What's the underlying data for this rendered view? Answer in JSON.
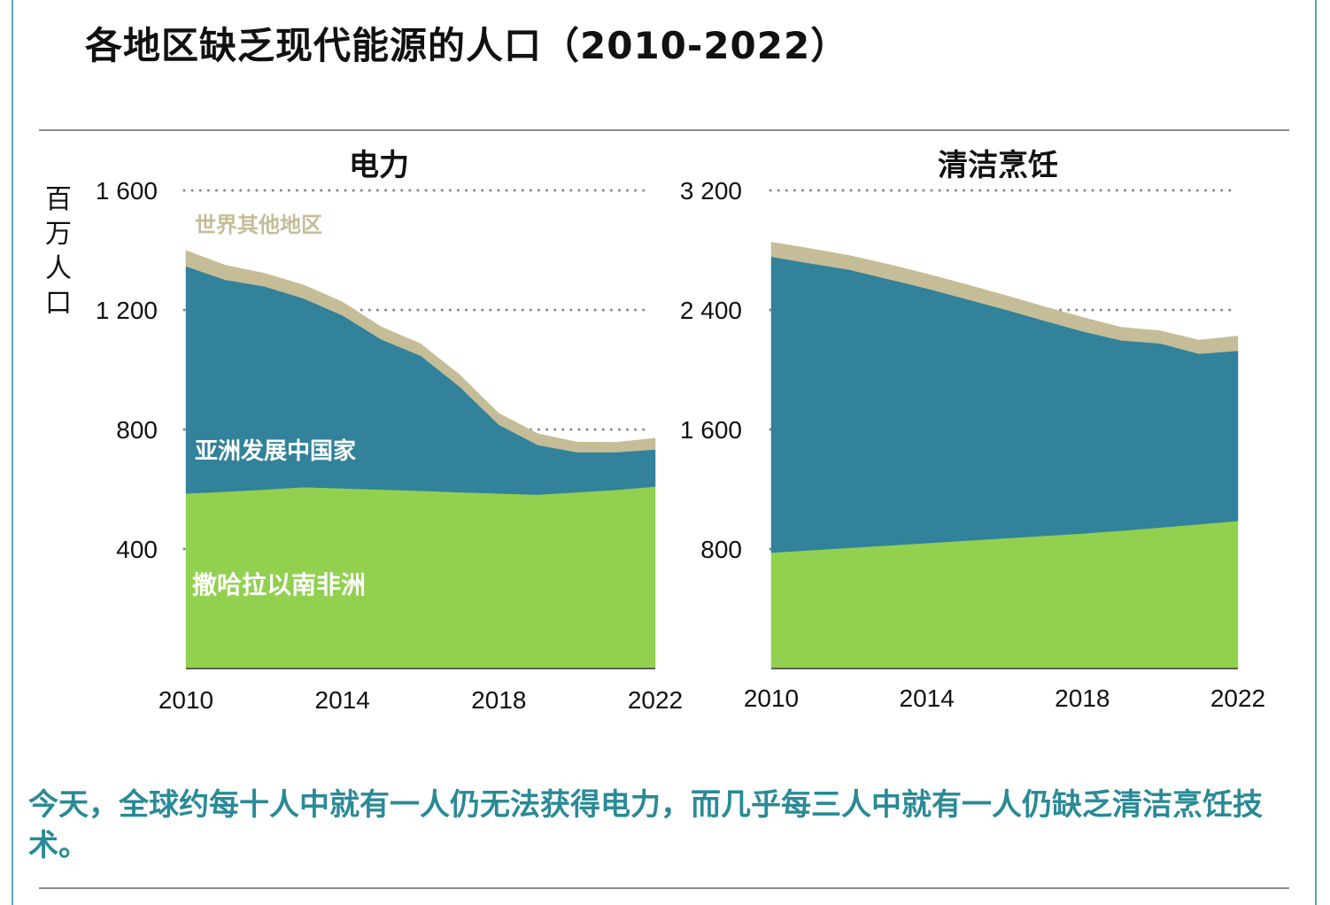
{
  "page": {
    "title": "各地区缺乏现代能源的人口（2010-2022）",
    "caption": "今天，全球约每十人中就有一人仍无法获得电力，而几乎每三人中就有一人仍缺乏清洁烹饪技术。",
    "y_unit_label": "百万人口",
    "colors": {
      "frame": "#5aa6b3",
      "caption": "#2a8a96",
      "rule": "#8c8c8c"
    }
  },
  "chart_data": [
    {
      "type": "area",
      "stacked": true,
      "title": "电力",
      "xlabel": "",
      "ylabel": "百万人口",
      "x": [
        2010,
        2011,
        2012,
        2013,
        2014,
        2015,
        2016,
        2017,
        2018,
        2019,
        2020,
        2021,
        2022
      ],
      "xticks": [
        2010,
        2014,
        2018,
        2022
      ],
      "xtick_labels": [
        "2010",
        "2014",
        "2018",
        "2022"
      ],
      "ylim": [
        0,
        1600
      ],
      "yticks": [
        400,
        800,
        1200,
        1600
      ],
      "ytick_labels": [
        "400",
        "800",
        "1 200",
        "1 600"
      ],
      "grid": "dotted horizontal",
      "series": [
        {
          "name": "撒哈拉以南非洲",
          "color": "#92d050",
          "label_color": "#ffffff",
          "values": [
            586,
            592,
            599,
            607,
            603,
            599,
            595,
            590,
            586,
            582,
            590,
            598,
            609
          ]
        },
        {
          "name": "亚洲发展中国家",
          "color": "#31829a",
          "label_color": "#ffffff",
          "values": [
            760,
            709,
            680,
            632,
            579,
            502,
            452,
            353,
            230,
            166,
            134,
            126,
            124
          ]
        },
        {
          "name": "世界其他地区",
          "color": "#c4bd97",
          "label_color": "#c4bd97",
          "values": [
            53,
            49,
            44,
            45,
            45,
            42,
            40,
            40,
            38,
            38,
            34,
            33,
            38
          ]
        }
      ]
    },
    {
      "type": "area",
      "stacked": true,
      "title": "清洁烹饪",
      "xlabel": "",
      "ylabel": "百万人口",
      "x": [
        2010,
        2011,
        2012,
        2013,
        2014,
        2015,
        2016,
        2017,
        2018,
        2019,
        2020,
        2021,
        2022
      ],
      "xticks": [
        2010,
        2014,
        2018,
        2022
      ],
      "xtick_labels": [
        "2010",
        "2014",
        "2018",
        "2022"
      ],
      "ylim": [
        0,
        3200
      ],
      "yticks": [
        800,
        1600,
        2400,
        3200
      ],
      "ytick_labels": [
        "800",
        "1 600",
        "2 400",
        "3 200"
      ],
      "grid": "dotted horizontal",
      "series": [
        {
          "name": "撒哈拉以南非洲",
          "color": "#92d050",
          "values": [
            776,
            792,
            808,
            824,
            840,
            856,
            872,
            888,
            904,
            923,
            944,
            966,
            988
          ]
        },
        {
          "name": "亚洲发展中国家",
          "color": "#31829a",
          "values": [
            1980,
            1920,
            1862,
            1783,
            1704,
            1618,
            1532,
            1442,
            1353,
            1273,
            1232,
            1141,
            1139
          ]
        },
        {
          "name": "世界其他地区",
          "color": "#c4bd97",
          "values": [
            98,
            99,
            95,
            99,
            97,
            98,
            95,
            94,
            94,
            88,
            85,
            91,
            99
          ]
        }
      ]
    }
  ]
}
